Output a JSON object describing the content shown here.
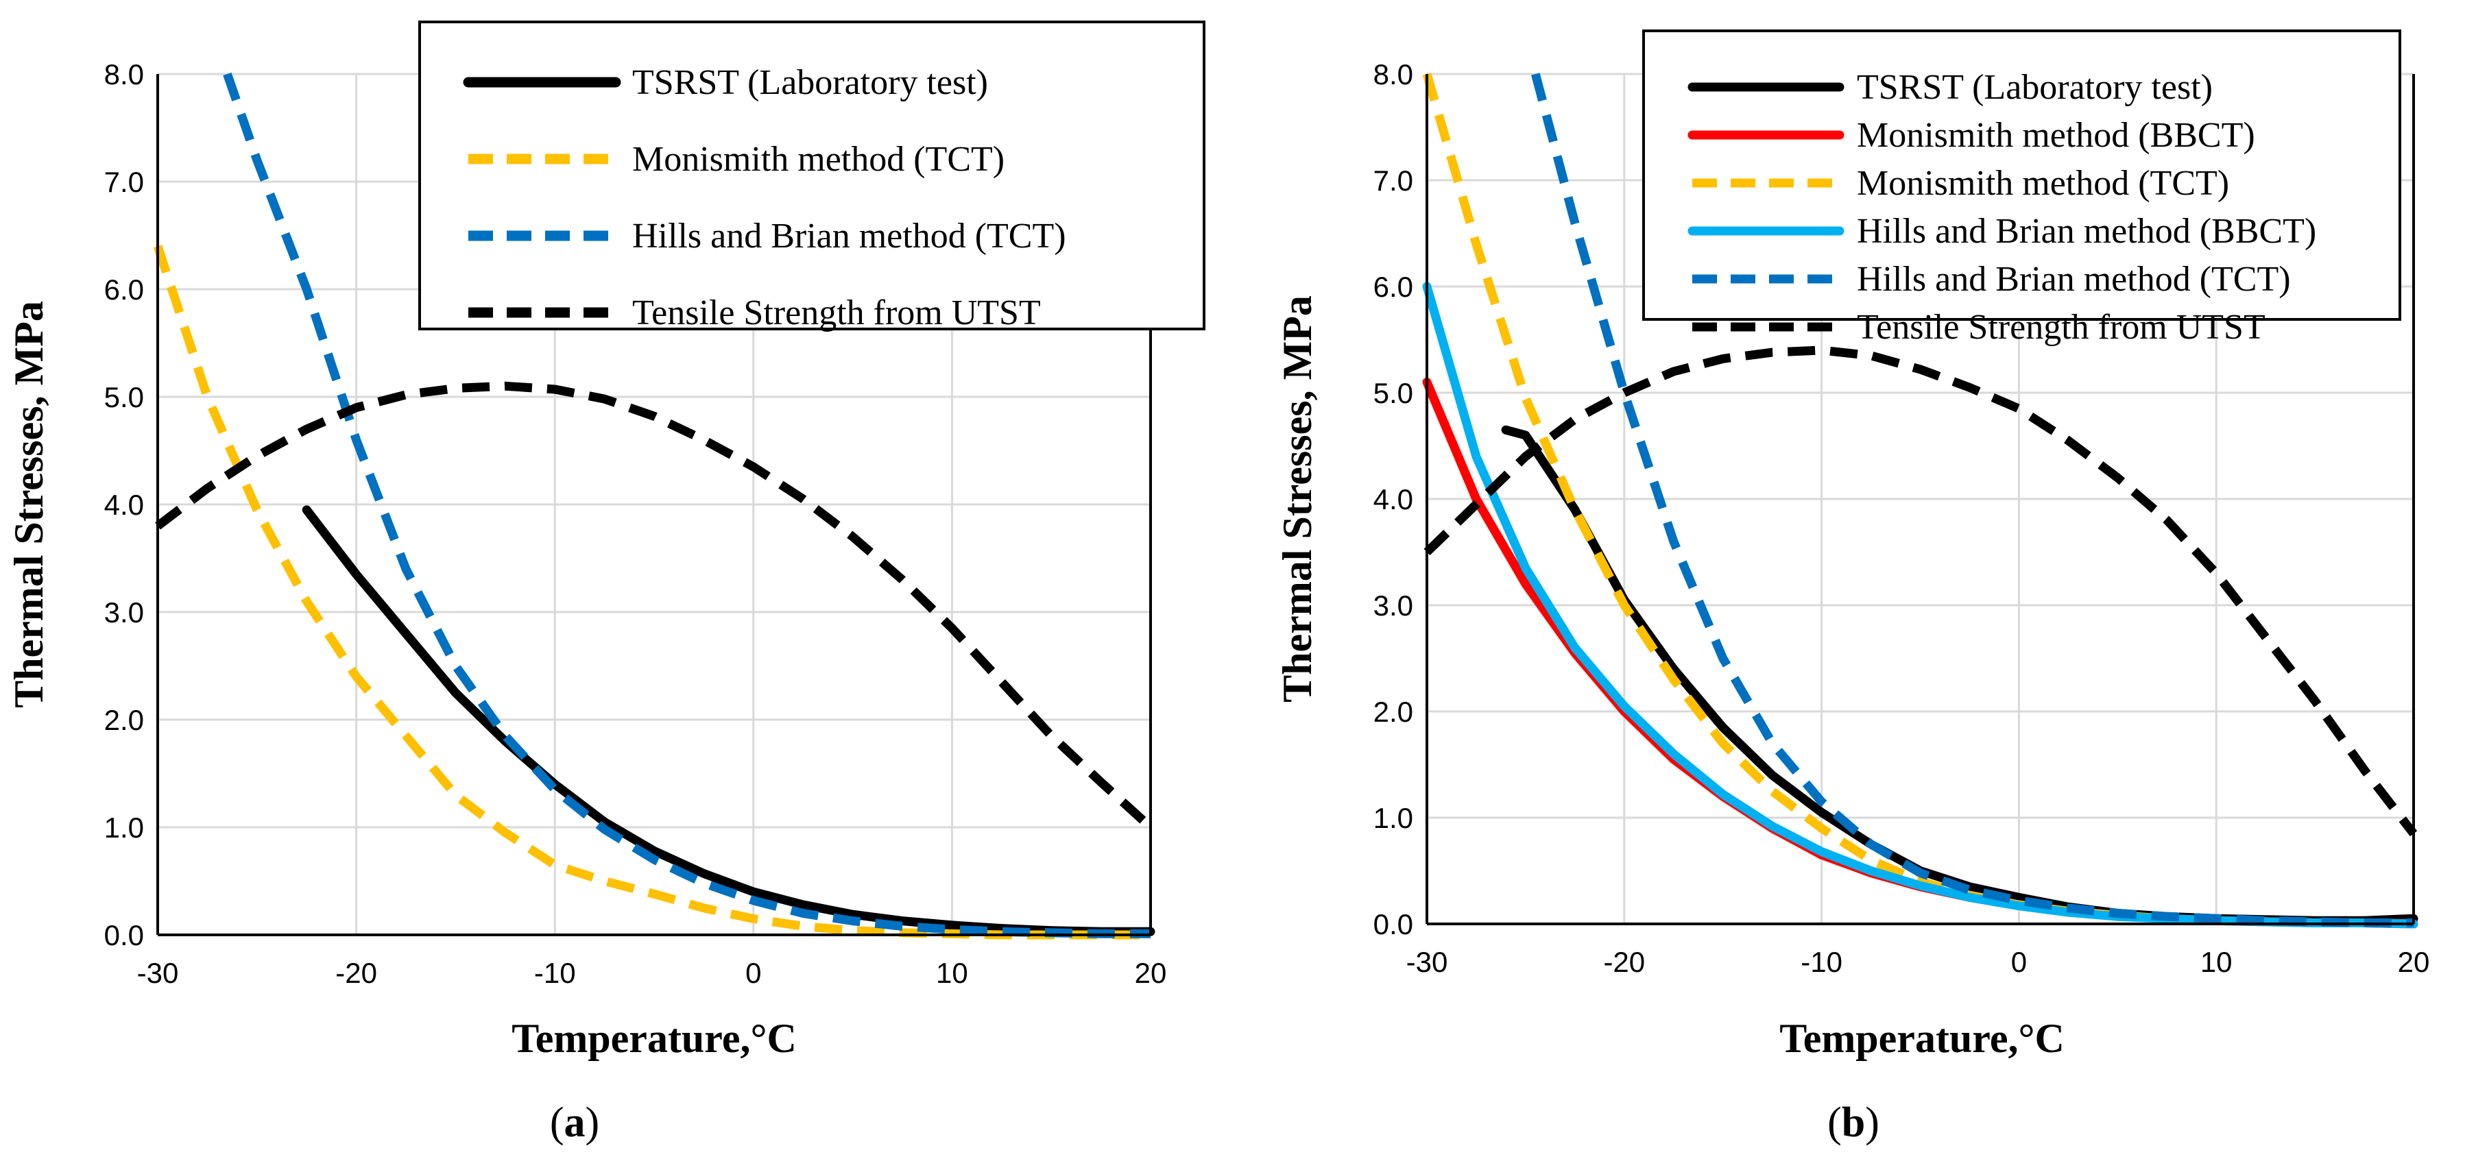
{
  "chart_data": [
    {
      "type": "line",
      "panel": "a",
      "caption_letter": "a",
      "xlabel": "Temperature,°C",
      "ylabel": "Thermal Stresses, MPa",
      "xlim": [
        -30,
        20
      ],
      "ylim": [
        0,
        8
      ],
      "xticks": [
        -30,
        -20,
        -10,
        0,
        10,
        20
      ],
      "yticks": [
        "0.0",
        "1.0",
        "2.0",
        "3.0",
        "4.0",
        "5.0",
        "6.0",
        "7.0",
        "8.0"
      ],
      "grid": true,
      "legend_position": "top-right",
      "series": [
        {
          "name": "TSRST (Laboratory test)",
          "color": "#000000",
          "dash": "solid",
          "x": [
            -22.5,
            -20,
            -17.5,
            -15,
            -12.5,
            -10,
            -7.5,
            -5,
            -2.5,
            0,
            2.5,
            5,
            7.5,
            10,
            12.5,
            15,
            17.5,
            20
          ],
          "y": [
            3.95,
            3.35,
            2.8,
            2.25,
            1.8,
            1.4,
            1.05,
            0.78,
            0.57,
            0.4,
            0.28,
            0.19,
            0.13,
            0.09,
            0.06,
            0.04,
            0.03,
            0.03
          ]
        },
        {
          "name": "Monismith method (TCT)",
          "color": "#FFC000",
          "dash": "dashed",
          "x": [
            -30,
            -27.5,
            -25,
            -22.5,
            -20,
            -17.5,
            -15,
            -12.5,
            -10,
            -7.5,
            -5,
            -2.5,
            0,
            2.5,
            5,
            7.5,
            10,
            12.5,
            15,
            17.5,
            20
          ],
          "y": [
            6.4,
            5.0,
            3.95,
            3.1,
            2.4,
            1.85,
            1.3,
            0.95,
            0.65,
            0.5,
            0.38,
            0.25,
            0.15,
            0.08,
            0.04,
            0.02,
            0.01,
            0.0,
            0.0,
            0.0,
            0.0
          ]
        },
        {
          "name": "Hills and Brian method (TCT)",
          "color": "#0070C0",
          "dash": "dashed",
          "x": [
            -26.5,
            -25,
            -22.5,
            -20,
            -17.5,
            -15,
            -12.5,
            -10,
            -7.5,
            -5,
            -2.5,
            0,
            2.5,
            5,
            7.5,
            10,
            12.5,
            15,
            17.5,
            20
          ],
          "y": [
            8.0,
            7.2,
            6.0,
            4.6,
            3.4,
            2.5,
            1.85,
            1.35,
            0.98,
            0.7,
            0.48,
            0.32,
            0.2,
            0.13,
            0.08,
            0.05,
            0.03,
            0.02,
            0.01,
            0.01
          ]
        },
        {
          "name": "Tensile Strength from UTST",
          "color": "#000000",
          "dash": "dashed",
          "x": [
            -30,
            -27.5,
            -25,
            -22.5,
            -20,
            -17.5,
            -15,
            -12.5,
            -10,
            -7.5,
            -5,
            -2.5,
            0,
            2.5,
            5,
            7.5,
            10,
            12.5,
            15,
            17.5,
            20
          ],
          "y": [
            3.8,
            4.15,
            4.45,
            4.7,
            4.9,
            5.02,
            5.08,
            5.1,
            5.07,
            4.98,
            4.82,
            4.6,
            4.35,
            4.05,
            3.7,
            3.3,
            2.85,
            2.35,
            1.85,
            1.42,
            1.0
          ]
        }
      ]
    },
    {
      "type": "line",
      "panel": "b",
      "caption_letter": "b",
      "xlabel": "Temperature,°C",
      "ylabel": "Thermal Stresses, MPa",
      "xlim": [
        -30,
        20
      ],
      "ylim": [
        0,
        8
      ],
      "xticks": [
        -30,
        -20,
        -10,
        0,
        10,
        20
      ],
      "yticks": [
        "0.0",
        "1.0",
        "2.0",
        "3.0",
        "4.0",
        "5.0",
        "6.0",
        "7.0",
        "8.0"
      ],
      "grid": true,
      "legend_position": "top-right",
      "series": [
        {
          "name": "TSRST (Laboratory test)",
          "color": "#000000",
          "dash": "solid",
          "x": [
            -26,
            -25,
            -22.5,
            -20,
            -17.5,
            -15,
            -12.5,
            -10,
            -7.5,
            -5,
            -2.5,
            0,
            2.5,
            5,
            7.5,
            10,
            12.5,
            15,
            17.5,
            20
          ],
          "y": [
            4.65,
            4.6,
            3.9,
            3.05,
            2.4,
            1.85,
            1.4,
            1.05,
            0.75,
            0.5,
            0.35,
            0.25,
            0.16,
            0.1,
            0.07,
            0.05,
            0.04,
            0.03,
            0.03,
            0.05
          ]
        },
        {
          "name": "Monismith method (BBCT)",
          "color": "#FF0000",
          "dash": "solid",
          "x": [
            -30,
            -27.5,
            -25,
            -22.5,
            -20,
            -17.5,
            -15,
            -12.5,
            -10,
            -7.5,
            -5,
            -2.5,
            0,
            2.5,
            5,
            7.5,
            10,
            12.5,
            15,
            17.5,
            20
          ],
          "y": [
            5.1,
            4.0,
            3.2,
            2.55,
            2.0,
            1.55,
            1.2,
            0.9,
            0.65,
            0.48,
            0.35,
            0.25,
            0.18,
            0.12,
            0.08,
            0.05,
            0.03,
            0.02,
            0.01,
            0.01,
            0.0
          ]
        },
        {
          "name": "Monismith method (TCT)",
          "color": "#FFC000",
          "dash": "dashed",
          "x": [
            -30,
            -27.5,
            -25,
            -22.5,
            -20,
            -17.5,
            -15,
            -12.5,
            -10,
            -7.5,
            -5,
            -2.5,
            0,
            2.5,
            5,
            7.5,
            10,
            12.5,
            15,
            17.5,
            20
          ],
          "y": [
            8.0,
            6.4,
            4.95,
            3.9,
            3.0,
            2.3,
            1.7,
            1.25,
            0.9,
            0.6,
            0.4,
            0.27,
            0.18,
            0.12,
            0.08,
            0.05,
            0.03,
            0.02,
            0.01,
            0.01,
            0.0
          ]
        },
        {
          "name": "Hills and Brian method (BBCT)",
          "color": "#00B0F0",
          "dash": "solid",
          "x": [
            -30,
            -27.5,
            -25,
            -22.5,
            -20,
            -17.5,
            -15,
            -12.5,
            -10,
            -7.5,
            -5,
            -2.5,
            0,
            2.5,
            5,
            7.5,
            10,
            12.5,
            15,
            17.5,
            20
          ],
          "y": [
            6.0,
            4.4,
            3.35,
            2.6,
            2.05,
            1.6,
            1.22,
            0.92,
            0.68,
            0.5,
            0.36,
            0.25,
            0.17,
            0.11,
            0.07,
            0.05,
            0.03,
            0.02,
            0.01,
            0.01,
            0.0
          ]
        },
        {
          "name": "Hills and Brian method (TCT)",
          "color": "#0070C0",
          "dash": "dashed",
          "x": [
            -24.5,
            -22.5,
            -20,
            -17.5,
            -15,
            -12.5,
            -10,
            -7.5,
            -5,
            -2.5,
            0,
            2.5,
            5,
            7.5,
            10,
            12.5,
            15,
            17.5,
            20
          ],
          "y": [
            8.0,
            6.6,
            5.0,
            3.6,
            2.5,
            1.7,
            1.15,
            0.75,
            0.48,
            0.32,
            0.22,
            0.15,
            0.1,
            0.07,
            0.05,
            0.03,
            0.02,
            0.01,
            0.01
          ]
        },
        {
          "name": "Tensile Strength from UTST",
          "color": "#000000",
          "dash": "dashed",
          "x": [
            -30,
            -27.5,
            -25,
            -22.5,
            -20,
            -17.5,
            -15,
            -12.5,
            -10,
            -7.5,
            -5,
            -2.5,
            0,
            2.5,
            5,
            7.5,
            10,
            12.5,
            15,
            17.5,
            20
          ],
          "y": [
            3.5,
            3.95,
            4.4,
            4.75,
            5.0,
            5.2,
            5.32,
            5.38,
            5.4,
            5.35,
            5.22,
            5.05,
            4.85,
            4.55,
            4.2,
            3.8,
            3.3,
            2.7,
            2.1,
            1.45,
            0.85
          ]
        }
      ]
    }
  ]
}
